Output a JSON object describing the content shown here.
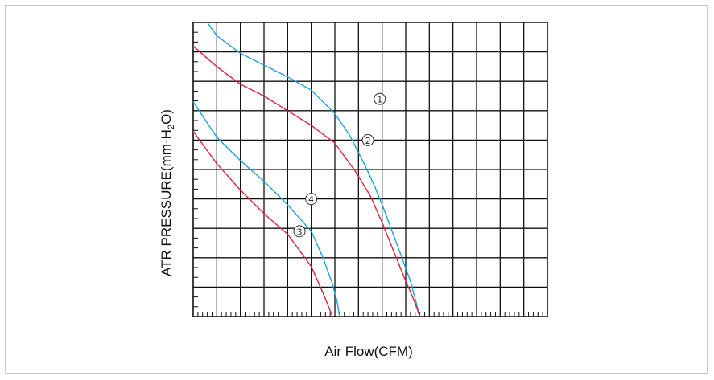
{
  "chart_data": {
    "type": "line",
    "title": "",
    "xlabel": "Air Flow(CFM)",
    "ylabel_parts": {
      "main": "ATR PRESSURE(mm-H",
      "sub": "2",
      "end": "O)"
    },
    "x_grid_divisions": 15,
    "y_grid_divisions": 10,
    "x_minor_per_major": 5,
    "y_minor_per_major": 3,
    "grid": true,
    "xlim": [
      0,
      15
    ],
    "ylim": [
      0,
      10
    ],
    "series": [
      {
        "marker": "①",
        "color": "#1aa3d9",
        "points": [
          [
            0.6,
            10
          ],
          [
            1,
            9.55
          ],
          [
            2,
            8.95
          ],
          [
            3,
            8.55
          ],
          [
            4,
            8.15
          ],
          [
            5,
            7.7
          ],
          [
            6,
            6.9
          ],
          [
            6.6,
            6.2
          ],
          [
            7.3,
            5.1
          ],
          [
            7.7,
            4.4
          ],
          [
            8.1,
            3.6
          ],
          [
            8.7,
            2.3
          ],
          [
            9.2,
            1.2
          ],
          [
            9.6,
            0.0
          ]
        ],
        "marker_at": [
          7.9,
          7.4
        ]
      },
      {
        "marker": "②",
        "color": "#d9243a",
        "points": [
          [
            0,
            9.2
          ],
          [
            1,
            8.5
          ],
          [
            2,
            7.9
          ],
          [
            3,
            7.5
          ],
          [
            4,
            7.0
          ],
          [
            5,
            6.5
          ],
          [
            6,
            5.9
          ],
          [
            6.9,
            4.9
          ],
          [
            7.5,
            4.1
          ],
          [
            8.0,
            3.2
          ],
          [
            8.4,
            2.4
          ],
          [
            8.9,
            1.4
          ],
          [
            9.35,
            0.55
          ],
          [
            9.6,
            0.0
          ]
        ],
        "marker_at": [
          7.4,
          6.0
        ]
      },
      {
        "marker": "③",
        "color": "#d9243a",
        "points": [
          [
            0,
            6.3
          ],
          [
            1,
            5.2
          ],
          [
            2,
            4.3
          ],
          [
            3,
            3.5
          ],
          [
            4,
            2.8
          ],
          [
            5,
            1.7
          ],
          [
            5.5,
            0.8
          ],
          [
            5.9,
            0.0
          ]
        ],
        "marker_at": [
          4.5,
          2.9
        ]
      },
      {
        "marker": "④",
        "color": "#1aa3d9",
        "points": [
          [
            0,
            7.3
          ],
          [
            1,
            6.1
          ],
          [
            2,
            5.3
          ],
          [
            3,
            4.6
          ],
          [
            4,
            3.8
          ],
          [
            5,
            2.9
          ],
          [
            5.5,
            2.0
          ],
          [
            5.9,
            1.1
          ],
          [
            6.1,
            0.5
          ],
          [
            6.2,
            0.0
          ]
        ],
        "marker_at": [
          5.0,
          4.0
        ]
      }
    ]
  }
}
